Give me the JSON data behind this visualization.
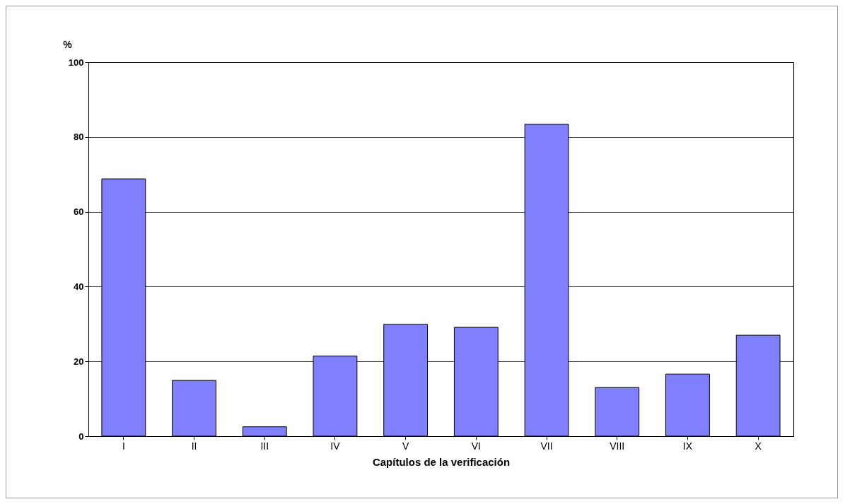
{
  "chart_data": {
    "type": "bar",
    "xlabel": "Capítulos de la verificación",
    "ylabel": "%",
    "categories": [
      "I",
      "II",
      "III",
      "IV",
      "V",
      "VI",
      "VII",
      "VIII",
      "IX",
      "X"
    ],
    "values": [
      68.8,
      14.9,
      2.5,
      21.4,
      29.9,
      29.1,
      83.4,
      13,
      16.6,
      27
    ],
    "color": "#8080ff",
    "ylim": [
      0,
      100
    ],
    "yticks": [
      0,
      20,
      40,
      60,
      80,
      100
    ],
    "grid": "y"
  }
}
